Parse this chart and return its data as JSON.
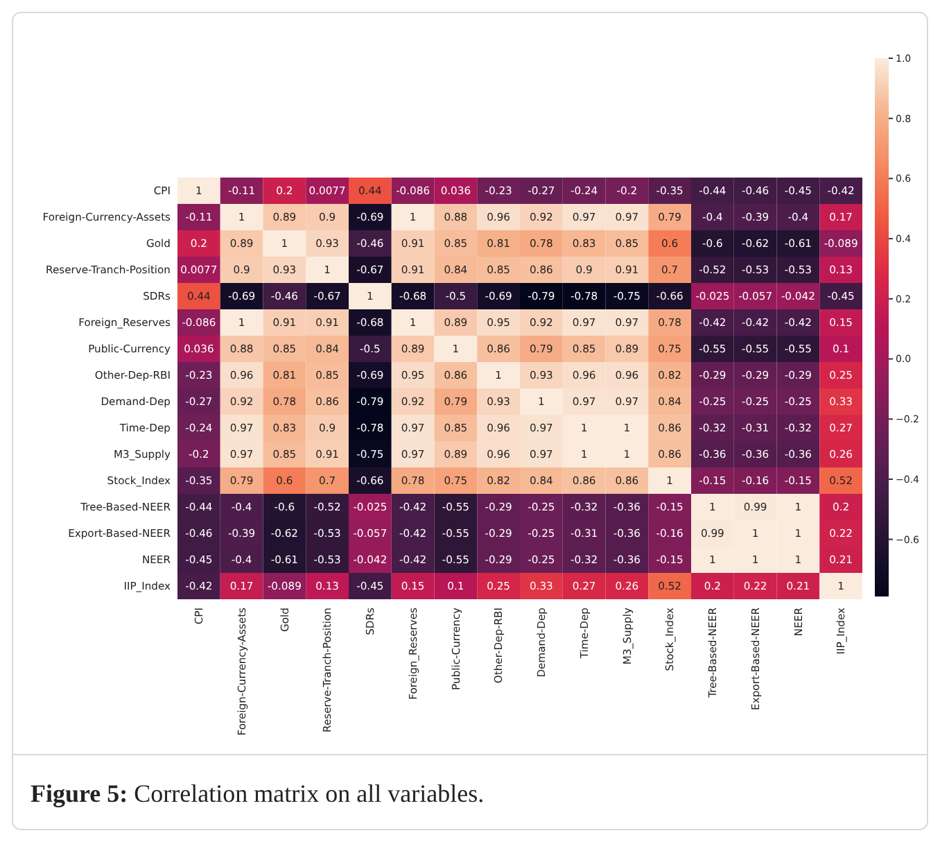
{
  "chart_data": {
    "type": "heatmap",
    "categories": [
      "CPI",
      "Foreign-Currency-Assets",
      "Gold",
      "Reserve-Tranch-Position",
      "SDRs",
      "Foreign_Reserves",
      "Public-Currency",
      "Other-Dep-RBI",
      "Demand-Dep",
      "Time-Dep",
      "M3_Supply",
      "Stock_Index",
      "Tree-Based-NEER",
      "Export-Based-NEER",
      "NEER",
      "IIP_Index"
    ],
    "y_categories": [
      "CPI",
      "Foreign-Currency-Assets",
      "Gold",
      "Reserve-Tranch-Position",
      "SDRs",
      "Foreign_Reserves",
      "Public-Currency",
      "Other-Dep-RBI",
      "Demand-Dep",
      "Time-Dep",
      "M3_Supply",
      "Stock_Index",
      "Tree-Based-NEER",
      "Export-Based-NEER",
      "NEER",
      "IIP_Index"
    ],
    "cells": [
      [
        1,
        -0.11,
        0.2,
        0.0077,
        0.44,
        -0.086,
        0.036,
        -0.23,
        -0.27,
        -0.24,
        -0.2,
        -0.35,
        -0.44,
        -0.46,
        -0.45,
        -0.42
      ],
      [
        -0.11,
        1,
        0.89,
        0.9,
        -0.69,
        1,
        0.88,
        0.96,
        0.92,
        0.97,
        0.97,
        0.79,
        -0.4,
        -0.39,
        -0.4,
        0.17
      ],
      [
        0.2,
        0.89,
        1,
        0.93,
        -0.46,
        0.91,
        0.85,
        0.81,
        0.78,
        0.83,
        0.85,
        0.6,
        -0.6,
        -0.62,
        -0.61,
        -0.089
      ],
      [
        0.0077,
        0.9,
        0.93,
        1,
        -0.67,
        0.91,
        0.84,
        0.85,
        0.86,
        0.9,
        0.91,
        0.7,
        -0.52,
        -0.53,
        -0.53,
        0.13
      ],
      [
        0.44,
        -0.69,
        -0.46,
        -0.67,
        1,
        -0.68,
        -0.5,
        -0.69,
        -0.79,
        -0.78,
        -0.75,
        -0.66,
        -0.025,
        -0.057,
        -0.042,
        -0.45
      ],
      [
        -0.086,
        1,
        0.91,
        0.91,
        -0.68,
        1,
        0.89,
        0.95,
        0.92,
        0.97,
        0.97,
        0.78,
        -0.42,
        -0.42,
        -0.42,
        0.15
      ],
      [
        0.036,
        0.88,
        0.85,
        0.84,
        -0.5,
        0.89,
        1,
        0.86,
        0.79,
        0.85,
        0.89,
        0.75,
        -0.55,
        -0.55,
        -0.55,
        0.1
      ],
      [
        -0.23,
        0.96,
        0.81,
        0.85,
        -0.69,
        0.95,
        0.86,
        1,
        0.93,
        0.96,
        0.96,
        0.82,
        -0.29,
        -0.29,
        -0.29,
        0.25
      ],
      [
        -0.27,
        0.92,
        0.78,
        0.86,
        -0.79,
        0.92,
        0.79,
        0.93,
        1,
        0.97,
        0.97,
        0.84,
        -0.25,
        -0.25,
        -0.25,
        0.33
      ],
      [
        -0.24,
        0.97,
        0.83,
        0.9,
        -0.78,
        0.97,
        0.85,
        0.96,
        0.97,
        1,
        1,
        0.86,
        -0.32,
        -0.31,
        -0.32,
        0.27
      ],
      [
        -0.2,
        0.97,
        0.85,
        0.91,
        -0.75,
        0.97,
        0.89,
        0.96,
        0.97,
        1,
        1,
        0.86,
        -0.36,
        -0.36,
        -0.36,
        0.26
      ],
      [
        -0.35,
        0.79,
        0.6,
        0.7,
        -0.66,
        0.78,
        0.75,
        0.82,
        0.84,
        0.86,
        0.86,
        1,
        -0.15,
        -0.16,
        -0.15,
        0.52
      ],
      [
        -0.44,
        -0.4,
        -0.6,
        -0.52,
        -0.025,
        -0.42,
        -0.55,
        -0.29,
        -0.25,
        -0.32,
        -0.36,
        -0.15,
        1,
        0.99,
        1,
        0.2
      ],
      [
        -0.46,
        -0.39,
        -0.62,
        -0.53,
        -0.057,
        -0.42,
        -0.55,
        -0.29,
        -0.25,
        -0.31,
        -0.36,
        -0.16,
        0.99,
        1,
        1,
        0.22
      ],
      [
        -0.45,
        -0.4,
        -0.61,
        -0.53,
        -0.042,
        -0.42,
        -0.55,
        -0.29,
        -0.25,
        -0.32,
        -0.36,
        -0.15,
        1,
        1,
        1,
        0.21
      ],
      [
        -0.42,
        0.17,
        -0.089,
        0.13,
        -0.45,
        0.15,
        0.1,
        0.25,
        0.33,
        0.27,
        0.26,
        0.52,
        0.2,
        0.22,
        0.21,
        1
      ]
    ],
    "data_labels": true,
    "clim": [
      -0.79,
      1
    ],
    "cticks": [
      {
        "value": -0.6,
        "label": "−0.6"
      },
      {
        "value": -0.4,
        "label": "−0.4"
      },
      {
        "value": -0.2,
        "label": "−0.2"
      },
      {
        "value": 0,
        "label": "0.0"
      },
      {
        "value": 0.2,
        "label": "0.2"
      },
      {
        "value": 0.4,
        "label": "0.4"
      },
      {
        "value": 0.6,
        "label": "0.6"
      },
      {
        "value": 0.8,
        "label": "0.8"
      },
      {
        "value": 1,
        "label": "1.0"
      }
    ],
    "annotations": [
      "Figure 5: Correlation matrix on all variables."
    ]
  }
}
